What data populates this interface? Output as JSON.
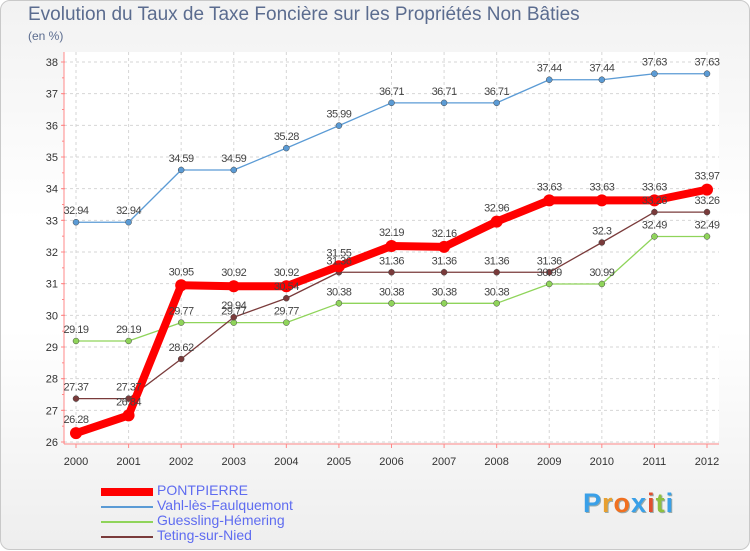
{
  "title": "Evolution du Taux de Taxe Foncière sur les Propriétés Non Bâties",
  "unit_label": "(en %)",
  "logo_text": "Proxiti",
  "chart_data": {
    "type": "line",
    "x": [
      "2000",
      "2001",
      "2002",
      "2003",
      "2004",
      "2005",
      "2006",
      "2007",
      "2008",
      "2009",
      "2010",
      "2011",
      "2012"
    ],
    "ylim": [
      26,
      38
    ],
    "yticks": [
      26,
      27,
      28,
      29,
      30,
      31,
      32,
      33,
      34,
      35,
      36,
      37,
      38
    ],
    "grid": true,
    "legend_position": "bottom-left",
    "series": [
      {
        "name": "PONTPIERRE",
        "color": "#ff0000",
        "values": [
          26.28,
          26.84,
          30.95,
          30.92,
          30.92,
          31.55,
          32.19,
          32.16,
          32.96,
          33.63,
          33.63,
          33.63,
          33.97
        ],
        "labels": [
          "26.28",
          "26.84",
          "30.95",
          "30.92",
          "30.92",
          "31.55",
          "32.19",
          "32.16",
          "32.96",
          "33.63",
          "33.63",
          "33.63",
          "33.97"
        ]
      },
      {
        "name": "Vahl-lès-Faulquemont",
        "color": "#5b9bd5",
        "values": [
          32.94,
          32.94,
          34.59,
          34.59,
          35.28,
          35.99,
          36.71,
          36.71,
          36.71,
          37.44,
          37.44,
          37.63,
          37.63
        ],
        "labels": [
          "32.94",
          "32.94",
          "34.59",
          "34.59",
          "35.28",
          "35.99",
          "36.71",
          "36.71",
          "36.71",
          "37.44",
          "37.44",
          "37.63",
          "37.63"
        ]
      },
      {
        "name": "Guessling-Hémering",
        "color": "#8fd45a",
        "values": [
          29.19,
          29.19,
          29.77,
          29.77,
          29.77,
          30.38,
          30.38,
          30.38,
          30.38,
          30.99,
          30.99,
          32.49,
          32.49
        ],
        "labels": [
          "29.19",
          "29.19",
          "29.77",
          "29.77",
          "29.77",
          "30.38",
          "30.38",
          "30.38",
          "30.38",
          "30.99",
          "30.99",
          "32.49",
          "32.49"
        ]
      },
      {
        "name": "Teting-sur-Nied",
        "color": "#7a3b3b",
        "values": [
          27.37,
          27.37,
          28.62,
          29.94,
          30.54,
          31.36,
          31.36,
          31.36,
          31.36,
          31.36,
          32.3,
          33.26,
          33.26
        ],
        "labels": [
          "27.37",
          "27.37",
          "28.62",
          "29.94",
          "30.54",
          "31.36",
          "31.36",
          "31.36",
          "31.36",
          "31.36",
          "32.3",
          "33.26",
          "33.26"
        ]
      }
    ]
  }
}
